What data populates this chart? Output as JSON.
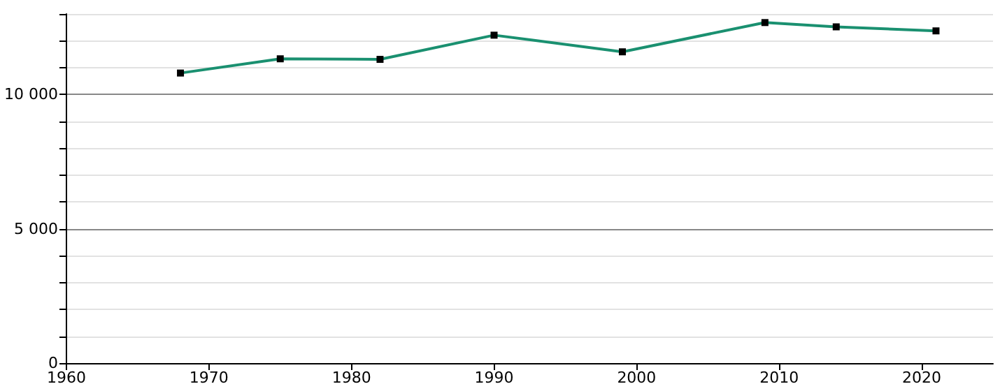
{
  "chart_data": {
    "type": "line",
    "x": [
      1968,
      1975,
      1982,
      1990,
      1999,
      2009,
      2014,
      2021
    ],
    "series": [
      {
        "color": "#1a9070",
        "values": [
          10800,
          11330,
          11310,
          12210,
          11590,
          12680,
          12520,
          12370
        ]
      }
    ],
    "marker": "square",
    "xlim": [
      1960,
      2025
    ],
    "xticks": [
      1960,
      1970,
      1980,
      1990,
      2000,
      2010,
      2020
    ],
    "ylim": [
      0,
      13000
    ],
    "yticks": [
      0,
      {
        "value": 1000,
        "label": null
      },
      {
        "value": 2000,
        "label": null
      },
      {
        "value": 3000,
        "label": null
      },
      {
        "value": 4000,
        "label": null
      },
      {
        "value": 5000,
        "label": "5 000"
      },
      {
        "value": 6000,
        "label": null
      },
      {
        "value": 7000,
        "label": null
      },
      {
        "value": 8000,
        "label": null
      },
      {
        "value": 9000,
        "label": null
      },
      {
        "value": 10000,
        "label": "10 000"
      },
      {
        "value": 11000,
        "label": null
      },
      {
        "value": 12000,
        "label": null
      },
      {
        "value": 13000,
        "label": null
      }
    ],
    "grid": "y"
  }
}
